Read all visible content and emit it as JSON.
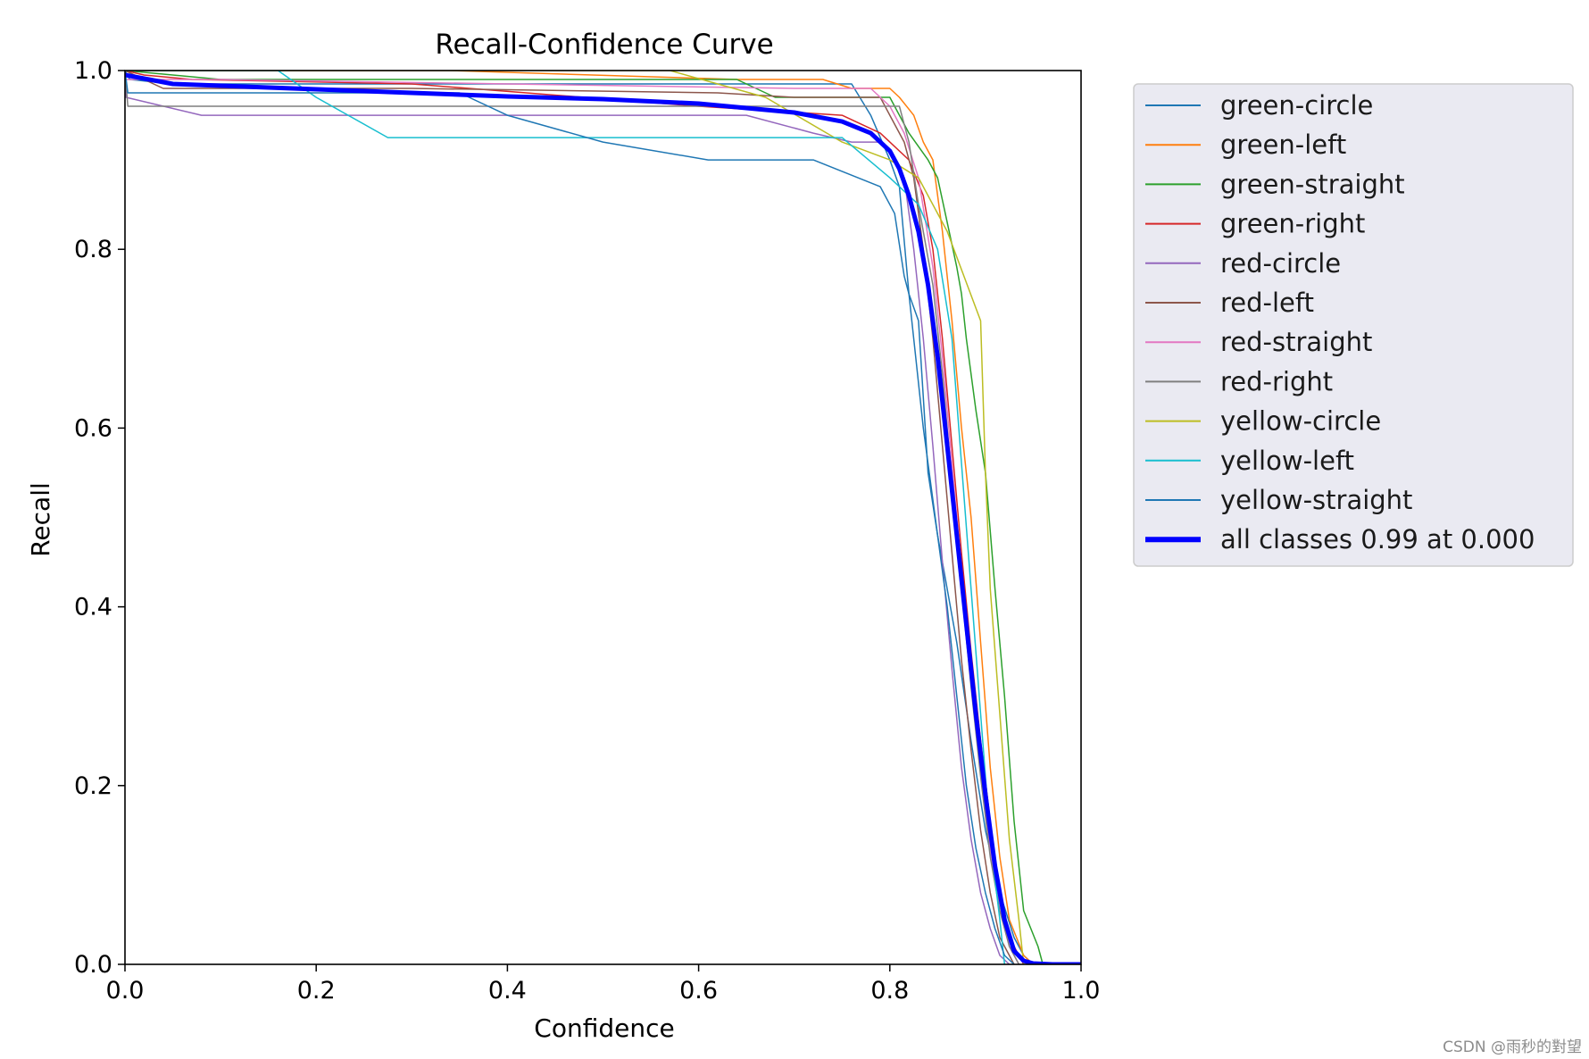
{
  "chart_data": {
    "type": "line",
    "title": "Recall-Confidence Curve",
    "xlabel": "Confidence",
    "ylabel": "Recall",
    "xlim": [
      0,
      1
    ],
    "ylim": [
      0,
      1
    ],
    "xticks": [
      "0.0",
      "0.2",
      "0.4",
      "0.6",
      "0.8",
      "1.0"
    ],
    "yticks": [
      "0.0",
      "0.2",
      "0.4",
      "0.6",
      "0.8",
      "1.0"
    ],
    "grid": false,
    "legend_position": "outside-right-top",
    "series": [
      {
        "name": "green-circle",
        "color": "#1f77b4",
        "width": 1.5,
        "x": [
          0.0,
          0.005,
          0.05,
          0.3,
          0.6,
          0.76,
          0.78,
          0.8,
          0.81,
          0.82,
          0.835,
          0.85,
          0.87,
          0.885,
          0.9,
          0.915,
          0.93,
          0.94,
          0.95
        ],
        "y": [
          1.0,
          0.99,
          0.985,
          0.985,
          0.985,
          0.985,
          0.95,
          0.9,
          0.87,
          0.75,
          0.6,
          0.48,
          0.36,
          0.25,
          0.15,
          0.08,
          0.03,
          0.01,
          0.0
        ]
      },
      {
        "name": "green-left",
        "color": "#ff7f0e",
        "width": 1.5,
        "x": [
          0.0,
          0.1,
          0.34,
          0.64,
          0.73,
          0.76,
          0.8,
          0.81,
          0.825,
          0.835,
          0.845,
          0.855,
          0.865,
          0.875,
          0.885,
          0.895,
          0.905,
          0.915,
          0.925,
          0.94,
          0.95
        ],
        "y": [
          1.0,
          1.0,
          1.0,
          0.99,
          0.99,
          0.98,
          0.98,
          0.97,
          0.95,
          0.92,
          0.9,
          0.82,
          0.72,
          0.6,
          0.5,
          0.36,
          0.22,
          0.12,
          0.05,
          0.01,
          0.0
        ]
      },
      {
        "name": "green-straight",
        "color": "#2ca02c",
        "width": 1.5,
        "x": [
          0.0,
          0.1,
          0.35,
          0.64,
          0.68,
          0.8,
          0.82,
          0.84,
          0.85,
          0.86,
          0.87,
          0.875,
          0.88,
          0.89,
          0.9,
          0.91,
          0.92,
          0.93,
          0.94,
          0.955,
          0.96
        ],
        "y": [
          1.0,
          0.99,
          0.99,
          0.99,
          0.97,
          0.97,
          0.93,
          0.9,
          0.88,
          0.83,
          0.78,
          0.75,
          0.7,
          0.62,
          0.55,
          0.42,
          0.3,
          0.16,
          0.06,
          0.02,
          0.0
        ]
      },
      {
        "name": "green-right",
        "color": "#d62728",
        "width": 1.5,
        "x": [
          0.0,
          0.02,
          0.07,
          0.3,
          0.6,
          0.75,
          0.79,
          0.8,
          0.82,
          0.835,
          0.845,
          0.855,
          0.865,
          0.875,
          0.885,
          0.895,
          0.905,
          0.915,
          0.925,
          0.94
        ],
        "y": [
          1.0,
          0.995,
          0.99,
          0.985,
          0.96,
          0.95,
          0.93,
          0.92,
          0.9,
          0.86,
          0.8,
          0.7,
          0.58,
          0.46,
          0.35,
          0.25,
          0.16,
          0.08,
          0.03,
          0.0
        ]
      },
      {
        "name": "red-circle",
        "color": "#9467bd",
        "width": 1.5,
        "x": [
          0.0,
          0.001,
          0.08,
          0.65,
          0.72,
          0.76,
          0.79,
          0.8,
          0.815,
          0.825,
          0.835,
          0.845,
          0.855,
          0.865,
          0.875,
          0.885,
          0.895,
          0.905,
          0.915,
          0.925
        ],
        "y": [
          1.0,
          0.97,
          0.95,
          0.95,
          0.93,
          0.92,
          0.92,
          0.91,
          0.88,
          0.8,
          0.7,
          0.58,
          0.45,
          0.33,
          0.22,
          0.14,
          0.08,
          0.04,
          0.01,
          0.0
        ]
      },
      {
        "name": "red-left",
        "color": "#8c564b",
        "width": 1.5,
        "x": [
          0.0,
          0.04,
          0.3,
          0.62,
          0.7,
          0.79,
          0.8,
          0.815,
          0.825,
          0.835,
          0.845,
          0.855,
          0.865,
          0.875,
          0.885,
          0.895,
          0.905,
          0.915,
          0.93
        ],
        "y": [
          1.0,
          0.98,
          0.98,
          0.975,
          0.97,
          0.97,
          0.95,
          0.92,
          0.88,
          0.8,
          0.7,
          0.58,
          0.46,
          0.34,
          0.24,
          0.15,
          0.08,
          0.03,
          0.0
        ]
      },
      {
        "name": "red-straight",
        "color": "#e377c2",
        "width": 1.5,
        "x": [
          0.0,
          0.1,
          0.4,
          0.7,
          0.78,
          0.8,
          0.815,
          0.83,
          0.845,
          0.855,
          0.865,
          0.875,
          0.885,
          0.895,
          0.905,
          0.915,
          0.925,
          0.935
        ],
        "y": [
          0.99,
          0.99,
          0.985,
          0.98,
          0.98,
          0.96,
          0.93,
          0.88,
          0.78,
          0.68,
          0.56,
          0.44,
          0.33,
          0.22,
          0.13,
          0.06,
          0.02,
          0.0
        ]
      },
      {
        "name": "red-right",
        "color": "#7f7f7f",
        "width": 1.5,
        "x": [
          0.0,
          0.003,
          0.3,
          0.7,
          0.8,
          0.81,
          0.82,
          0.83,
          0.845,
          0.855,
          0.865,
          0.875,
          0.885,
          0.895,
          0.905,
          0.915,
          0.925,
          0.935
        ],
        "y": [
          1.0,
          0.96,
          0.96,
          0.96,
          0.96,
          0.96,
          0.92,
          0.85,
          0.76,
          0.66,
          0.54,
          0.42,
          0.31,
          0.21,
          0.12,
          0.06,
          0.02,
          0.0
        ]
      },
      {
        "name": "yellow-circle",
        "color": "#bcbd22",
        "width": 1.5,
        "x": [
          0.0,
          0.2,
          0.57,
          0.67,
          0.75,
          0.8,
          0.83,
          0.86,
          0.895,
          0.9,
          0.905,
          0.915,
          0.925,
          0.935,
          0.94
        ],
        "y": [
          1.0,
          1.0,
          1.0,
          0.97,
          0.92,
          0.9,
          0.88,
          0.82,
          0.72,
          0.55,
          0.42,
          0.28,
          0.14,
          0.05,
          0.0
        ]
      },
      {
        "name": "yellow-left",
        "color": "#17becf",
        "width": 1.5,
        "x": [
          0.0,
          0.16,
          0.2,
          0.275,
          0.5,
          0.75,
          0.8,
          0.83,
          0.85,
          0.865,
          0.875,
          0.885,
          0.895,
          0.905,
          0.915,
          0.92
        ],
        "y": [
          1.0,
          1.0,
          0.97,
          0.925,
          0.925,
          0.925,
          0.88,
          0.85,
          0.8,
          0.7,
          0.56,
          0.42,
          0.28,
          0.14,
          0.05,
          0.0
        ]
      },
      {
        "name": "yellow-straight",
        "color": "#1f77b4",
        "width": 1.5,
        "x": [
          0.0,
          0.003,
          0.35,
          0.4,
          0.5,
          0.61,
          0.72,
          0.79,
          0.805,
          0.815,
          0.82,
          0.83,
          0.84,
          0.85,
          0.86,
          0.87,
          0.88,
          0.89,
          0.9,
          0.91,
          0.92,
          0.93
        ],
        "y": [
          1.0,
          0.975,
          0.975,
          0.95,
          0.92,
          0.9,
          0.9,
          0.87,
          0.84,
          0.77,
          0.75,
          0.72,
          0.55,
          0.48,
          0.4,
          0.3,
          0.2,
          0.13,
          0.08,
          0.04,
          0.01,
          0.0
        ]
      },
      {
        "name": "all classes 0.99 at 0.000",
        "color": "#0000ff",
        "width": 5,
        "x": [
          0.0,
          0.05,
          0.1,
          0.2,
          0.3,
          0.4,
          0.5,
          0.6,
          0.65,
          0.7,
          0.75,
          0.78,
          0.8,
          0.81,
          0.82,
          0.83,
          0.84,
          0.85,
          0.86,
          0.87,
          0.88,
          0.89,
          0.9,
          0.91,
          0.92,
          0.93,
          0.94,
          0.95,
          0.97,
          1.0
        ],
        "y": [
          0.995,
          0.985,
          0.983,
          0.979,
          0.975,
          0.971,
          0.968,
          0.963,
          0.958,
          0.953,
          0.943,
          0.93,
          0.91,
          0.89,
          0.86,
          0.82,
          0.76,
          0.68,
          0.58,
          0.48,
          0.38,
          0.28,
          0.19,
          0.11,
          0.05,
          0.015,
          0.004,
          0.001,
          0.0,
          0.0
        ]
      }
    ]
  },
  "watermark": "CSDN @雨秒的對望"
}
